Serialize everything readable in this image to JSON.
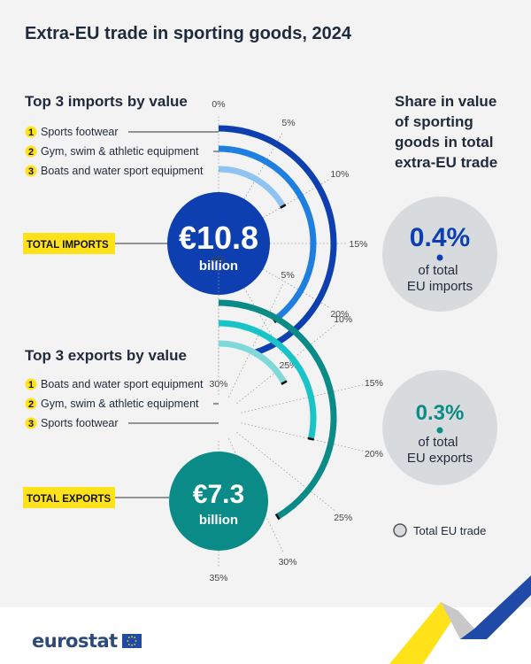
{
  "title": "Extra-EU trade in sporting goods, 2024",
  "colors": {
    "imports_dark": "#0d3fb0",
    "imports_mid": "#1f7fe0",
    "imports_light": "#8fc3f2",
    "exports_dark": "#0b8b87",
    "exports_mid": "#19c4c8",
    "exports_light": "#7ed9d8",
    "badge_yellow": "#ffe21a",
    "circle_grey": "#d8dbdd",
    "circle_imports": "#0d3fb0",
    "circle_exports": "#0b8b87"
  },
  "share": {
    "heading": "Share in value of sporting goods in total extra-EU trade",
    "imports_value": "0.4%",
    "imports_caption": "of total EU imports",
    "exports_value": "0.3%",
    "exports_caption": "of total EU exports",
    "legend": "Total EU trade"
  },
  "chart_data": [
    {
      "type": "radial-bar",
      "title": "Top 3 imports by value",
      "unit": "% of total",
      "ticks": [
        0,
        5,
        10,
        15,
        20,
        25,
        30
      ],
      "tick_labels": [
        "0%",
        "5%",
        "10%",
        "15%",
        "20%",
        "25%",
        "30%"
      ],
      "ylim": [
        0,
        30
      ],
      "categories": [
        "Sports footwear",
        "Gym, swim & athletic equipment",
        "Boats and water sport equipment"
      ],
      "ranks": [
        "1",
        "2",
        "3"
      ],
      "values": [
        27,
        24,
        10
      ],
      "total_label": "TOTAL IMPORTS",
      "total_value": "€10.8",
      "total_unit": "billion"
    },
    {
      "type": "radial-bar",
      "title": "Top 3 exports by value",
      "unit": "% of total",
      "ticks": [
        0,
        5,
        10,
        15,
        20,
        25,
        30,
        35
      ],
      "tick_labels": [
        "0%",
        "5%",
        "10%",
        "15%",
        "20%",
        "25%",
        "30%",
        "35%"
      ],
      "ylim": [
        0,
        35
      ],
      "categories": [
        "Boats and water sport equipment",
        "Gym, swim & athletic equipment",
        "Sports footwear"
      ],
      "ranks": [
        "1",
        "2",
        "3"
      ],
      "values": [
        29,
        20,
        12
      ],
      "total_label": "TOTAL EXPORTS",
      "total_value": "€7.3",
      "total_unit": "billion"
    }
  ],
  "footer": {
    "logo": "eurostat"
  }
}
